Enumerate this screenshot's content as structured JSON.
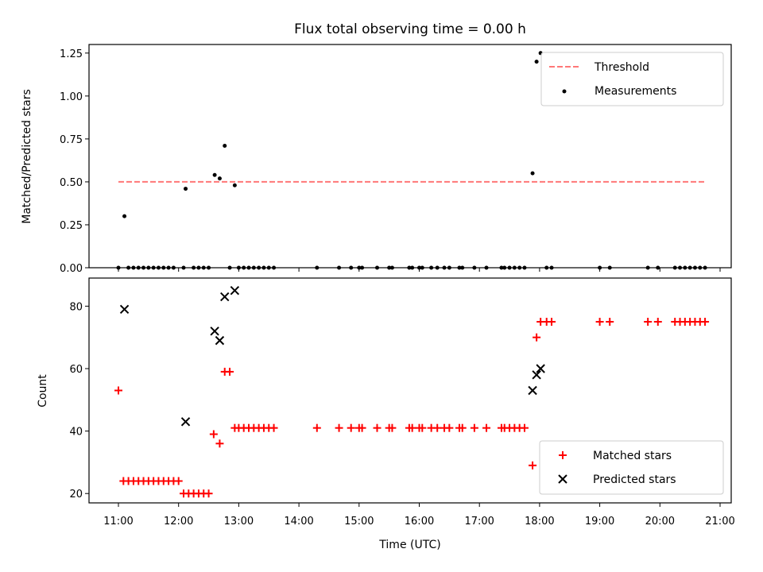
{
  "chart_data": [
    {
      "type": "scatter",
      "title": "Flux total observing time = 0.00 h",
      "ylabel": "Matched/Predicted stars",
      "ylim": [
        0,
        1.3
      ],
      "yticks": [
        "0.00",
        "0.25",
        "0.50",
        "0.75",
        "1.00",
        "1.25"
      ],
      "ytick_values": [
        0,
        0.25,
        0.5,
        0.75,
        1.0,
        1.25
      ],
      "xlim": [
        "10:55",
        "21:10"
      ],
      "legend_position": "upper right",
      "threshold": {
        "name": "Threshold",
        "value": 0.5,
        "x_start": "11:00",
        "x_end": "20:45",
        "color": "#ff7777"
      },
      "series": [
        {
          "name": "Measurements",
          "color": "#000000",
          "points": [
            [
              "11:00",
              0.0
            ],
            [
              "11:06",
              0.3
            ],
            [
              "11:10",
              0.0
            ],
            [
              "11:15",
              0.0
            ],
            [
              "11:20",
              0.0
            ],
            [
              "11:25",
              0.0
            ],
            [
              "11:30",
              0.0
            ],
            [
              "11:35",
              0.0
            ],
            [
              "11:40",
              0.0
            ],
            [
              "11:45",
              0.0
            ],
            [
              "11:50",
              0.0
            ],
            [
              "11:55",
              0.0
            ],
            [
              "12:05",
              0.0
            ],
            [
              "12:07",
              0.46
            ],
            [
              "12:15",
              0.0
            ],
            [
              "12:20",
              0.0
            ],
            [
              "12:25",
              0.0
            ],
            [
              "12:30",
              0.0
            ],
            [
              "12:36",
              0.54
            ],
            [
              "12:41",
              0.52
            ],
            [
              "12:46",
              0.71
            ],
            [
              "12:51",
              0.0
            ],
            [
              "12:56",
              0.48
            ],
            [
              "13:00",
              0.0
            ],
            [
              "13:05",
              0.0
            ],
            [
              "13:10",
              0.0
            ],
            [
              "13:15",
              0.0
            ],
            [
              "13:20",
              0.0
            ],
            [
              "13:25",
              0.0
            ],
            [
              "13:30",
              0.0
            ],
            [
              "13:35",
              0.0
            ],
            [
              "14:18",
              0.0
            ],
            [
              "14:40",
              0.0
            ],
            [
              "14:52",
              0.0
            ],
            [
              "15:00",
              0.0
            ],
            [
              "15:03",
              0.0
            ],
            [
              "15:18",
              0.0
            ],
            [
              "15:30",
              0.0
            ],
            [
              "15:33",
              0.0
            ],
            [
              "15:50",
              0.0
            ],
            [
              "15:53",
              0.0
            ],
            [
              "16:00",
              0.0
            ],
            [
              "16:03",
              0.0
            ],
            [
              "16:12",
              0.0
            ],
            [
              "16:18",
              0.0
            ],
            [
              "16:25",
              0.0
            ],
            [
              "16:30",
              0.0
            ],
            [
              "16:40",
              0.0
            ],
            [
              "16:43",
              0.0
            ],
            [
              "16:55",
              0.0
            ],
            [
              "17:07",
              0.0
            ],
            [
              "17:22",
              0.0
            ],
            [
              "17:25",
              0.0
            ],
            [
              "17:30",
              0.0
            ],
            [
              "17:35",
              0.0
            ],
            [
              "17:40",
              0.0
            ],
            [
              "17:45",
              0.0
            ],
            [
              "17:53",
              0.55
            ],
            [
              "17:57",
              1.2
            ],
            [
              "18:01",
              1.25
            ],
            [
              "18:07",
              0.0
            ],
            [
              "18:12",
              0.0
            ],
            [
              "19:00",
              0.0
            ],
            [
              "19:10",
              0.0
            ],
            [
              "19:48",
              0.0
            ],
            [
              "19:58",
              0.0
            ],
            [
              "20:15",
              0.0
            ],
            [
              "20:20",
              0.0
            ],
            [
              "20:25",
              0.0
            ],
            [
              "20:30",
              0.0
            ],
            [
              "20:35",
              0.0
            ],
            [
              "20:40",
              0.0
            ],
            [
              "20:45",
              0.0
            ]
          ]
        }
      ]
    },
    {
      "type": "scatter",
      "ylabel": "Count",
      "xlabel": "Time (UTC)",
      "ylim": [
        17,
        89
      ],
      "yticks": [
        "20",
        "40",
        "60",
        "80"
      ],
      "ytick_values": [
        20,
        40,
        60,
        80
      ],
      "xlim": [
        "10:55",
        "21:10"
      ],
      "xticks": [
        "11:00",
        "12:00",
        "13:00",
        "14:00",
        "15:00",
        "16:00",
        "17:00",
        "18:00",
        "19:00",
        "20:00",
        "21:00"
      ],
      "legend_position": "lower right",
      "series": [
        {
          "name": "Matched stars",
          "marker": "+",
          "color": "#ff0000",
          "points": [
            [
              "11:00",
              53
            ],
            [
              "11:05",
              24
            ],
            [
              "11:10",
              24
            ],
            [
              "11:15",
              24
            ],
            [
              "11:20",
              24
            ],
            [
              "11:25",
              24
            ],
            [
              "11:30",
              24
            ],
            [
              "11:35",
              24
            ],
            [
              "11:40",
              24
            ],
            [
              "11:45",
              24
            ],
            [
              "11:50",
              24
            ],
            [
              "11:55",
              24
            ],
            [
              "12:00",
              24
            ],
            [
              "12:05",
              20
            ],
            [
              "12:10",
              20
            ],
            [
              "12:15",
              20
            ],
            [
              "12:20",
              20
            ],
            [
              "12:25",
              20
            ],
            [
              "12:30",
              20
            ],
            [
              "12:35",
              39
            ],
            [
              "12:41",
              36
            ],
            [
              "12:46",
              59
            ],
            [
              "12:51",
              59
            ],
            [
              "12:56",
              41
            ],
            [
              "13:00",
              41
            ],
            [
              "13:05",
              41
            ],
            [
              "13:10",
              41
            ],
            [
              "13:15",
              41
            ],
            [
              "13:20",
              41
            ],
            [
              "13:25",
              41
            ],
            [
              "13:30",
              41
            ],
            [
              "13:35",
              41
            ],
            [
              "14:18",
              41
            ],
            [
              "14:40",
              41
            ],
            [
              "14:52",
              41
            ],
            [
              "15:00",
              41
            ],
            [
              "15:03",
              41
            ],
            [
              "15:18",
              41
            ],
            [
              "15:30",
              41
            ],
            [
              "15:33",
              41
            ],
            [
              "15:50",
              41
            ],
            [
              "15:53",
              41
            ],
            [
              "16:00",
              41
            ],
            [
              "16:03",
              41
            ],
            [
              "16:12",
              41
            ],
            [
              "16:18",
              41
            ],
            [
              "16:25",
              41
            ],
            [
              "16:30",
              41
            ],
            [
              "16:40",
              41
            ],
            [
              "16:43",
              41
            ],
            [
              "16:55",
              41
            ],
            [
              "17:07",
              41
            ],
            [
              "17:22",
              41
            ],
            [
              "17:25",
              41
            ],
            [
              "17:30",
              41
            ],
            [
              "17:35",
              41
            ],
            [
              "17:40",
              41
            ],
            [
              "17:45",
              41
            ],
            [
              "17:53",
              29
            ],
            [
              "17:57",
              70
            ],
            [
              "18:01",
              75
            ],
            [
              "18:07",
              75
            ],
            [
              "18:12",
              75
            ],
            [
              "19:00",
              75
            ],
            [
              "19:10",
              75
            ],
            [
              "19:48",
              75
            ],
            [
              "19:58",
              75
            ],
            [
              "20:15",
              75
            ],
            [
              "20:20",
              75
            ],
            [
              "20:25",
              75
            ],
            [
              "20:30",
              75
            ],
            [
              "20:35",
              75
            ],
            [
              "20:40",
              75
            ],
            [
              "20:45",
              75
            ]
          ]
        },
        {
          "name": "Predicted stars",
          "marker": "x",
          "color": "#000000",
          "points": [
            [
              "11:06",
              79
            ],
            [
              "12:07",
              43
            ],
            [
              "12:36",
              72
            ],
            [
              "12:41",
              69
            ],
            [
              "12:46",
              83
            ],
            [
              "12:56",
              85
            ],
            [
              "17:53",
              53
            ],
            [
              "17:57",
              58
            ],
            [
              "18:01",
              60
            ]
          ]
        }
      ]
    }
  ]
}
